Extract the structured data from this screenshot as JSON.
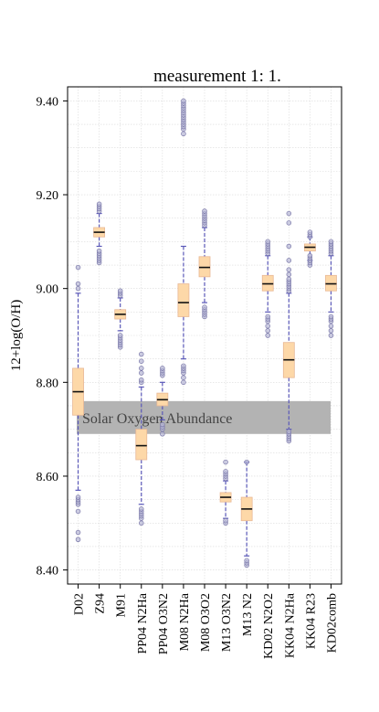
{
  "chart_data": {
    "type": "box",
    "title": "measurement 1: 1.",
    "xlabel": "",
    "ylabel": "12+log(O/H)",
    "ylim": [
      8.37,
      9.43
    ],
    "yticks": [
      8.4,
      8.6,
      8.8,
      9.0,
      9.2,
      9.4
    ],
    "ytick_labels": [
      "8.40",
      "8.60",
      "8.80",
      "9.00",
      "9.20",
      "9.40"
    ],
    "grid": true,
    "colors": {
      "box_fill": "#fdd8a8",
      "box_edge": "#e8b896",
      "median": "#111111",
      "whisker": "#5a58b8",
      "outlier": "#7a78a8",
      "band": "#b3b3b3"
    },
    "categories": [
      "D02",
      "Z94",
      "M91",
      "PP04 N2Ha",
      "PP04 O3N2",
      "M08 N2Ha",
      "M08 O3O2",
      "M13 O3N2",
      "M13 N2",
      "KD02 N2O2",
      "KK04 N2Ha",
      "KK04 R23",
      "KD02comb"
    ],
    "boxes": [
      {
        "whislo": 8.57,
        "q1": 8.73,
        "med": 8.78,
        "q3": 8.83,
        "whishi": 8.99,
        "fliers": [
          8.465,
          8.48,
          8.525,
          8.54,
          8.545,
          8.55,
          8.555,
          9.0,
          9.01,
          9.045
        ]
      },
      {
        "whislo": 9.09,
        "q1": 9.11,
        "med": 9.12,
        "q3": 9.13,
        "whishi": 9.16,
        "fliers": [
          9.055,
          9.06,
          9.065,
          9.07,
          9.075,
          9.08,
          9.165,
          9.17,
          9.175,
          9.18
        ]
      },
      {
        "whislo": 8.91,
        "q1": 8.935,
        "med": 8.945,
        "q3": 8.955,
        "whishi": 8.98,
        "fliers": [
          8.875,
          8.88,
          8.885,
          8.89,
          8.895,
          8.9,
          8.985,
          8.99,
          8.995
        ]
      },
      {
        "whislo": 8.54,
        "q1": 8.635,
        "med": 8.665,
        "q3": 8.7,
        "whishi": 8.79,
        "fliers": [
          8.5,
          8.51,
          8.515,
          8.52,
          8.525,
          8.53,
          8.8,
          8.805,
          8.82,
          8.83,
          8.845,
          8.86
        ]
      },
      {
        "whislo": 8.72,
        "q1": 8.75,
        "med": 8.763,
        "q3": 8.777,
        "whishi": 8.8,
        "fliers": [
          8.69,
          8.7,
          8.705,
          8.71,
          8.815,
          8.82,
          8.825,
          8.83
        ]
      },
      {
        "whislo": 8.85,
        "q1": 8.94,
        "med": 8.97,
        "q3": 9.01,
        "whishi": 9.09,
        "fliers": [
          8.8,
          8.81,
          8.82,
          8.825,
          8.83,
          8.835,
          9.33,
          9.34,
          9.345,
          9.35,
          9.355,
          9.36,
          9.365,
          9.37,
          9.375,
          9.38,
          9.385,
          9.39,
          9.395,
          9.4
        ]
      },
      {
        "whislo": 8.97,
        "q1": 9.025,
        "med": 9.045,
        "q3": 9.068,
        "whishi": 9.13,
        "fliers": [
          8.94,
          8.945,
          8.95,
          8.955,
          8.96,
          9.135,
          9.14,
          9.145,
          9.15,
          9.155,
          9.16,
          9.165
        ]
      },
      {
        "whislo": 8.51,
        "q1": 8.545,
        "med": 8.555,
        "q3": 8.565,
        "whishi": 8.59,
        "fliers": [
          8.5,
          8.505,
          8.595,
          8.6,
          8.605,
          8.61,
          8.63
        ]
      },
      {
        "whislo": 8.43,
        "q1": 8.505,
        "med": 8.53,
        "q3": 8.555,
        "whishi": 8.63,
        "fliers": [
          8.41,
          8.415,
          8.42,
          8.63
        ]
      },
      {
        "whislo": 8.95,
        "q1": 8.995,
        "med": 9.01,
        "q3": 9.028,
        "whishi": 9.07,
        "fliers": [
          8.9,
          8.91,
          8.92,
          8.93,
          8.935,
          8.94,
          9.075,
          9.08,
          9.085,
          9.09,
          9.095,
          9.1
        ]
      },
      {
        "whislo": 8.7,
        "q1": 8.81,
        "med": 8.848,
        "q3": 8.885,
        "whishi": 8.99,
        "fliers": [
          8.675,
          8.68,
          8.685,
          8.69,
          8.695,
          8.995,
          9.0,
          9.005,
          9.01,
          9.015,
          9.02,
          9.03,
          9.04,
          9.06,
          9.09,
          9.14,
          9.16
        ]
      },
      {
        "whislo": 9.06,
        "q1": 9.08,
        "med": 9.088,
        "q3": 9.095,
        "whishi": 9.11,
        "fliers": [
          9.05,
          9.055,
          9.06,
          9.065,
          9.07,
          9.11,
          9.115,
          9.12
        ]
      },
      {
        "whislo": 8.95,
        "q1": 8.995,
        "med": 9.01,
        "q3": 9.028,
        "whishi": 9.07,
        "fliers": [
          8.9,
          8.91,
          8.92,
          8.93,
          8.935,
          8.94,
          9.075,
          9.08,
          9.085,
          9.09,
          9.095,
          9.1
        ]
      }
    ],
    "band": {
      "label": "Solar Oxygen Abundance",
      "y0": 8.69,
      "y1": 8.76
    }
  }
}
